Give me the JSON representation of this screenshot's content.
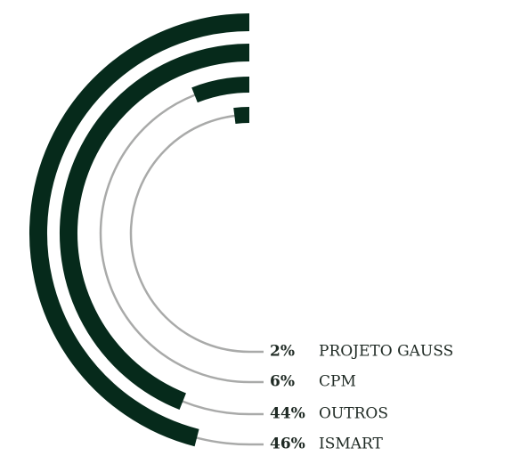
{
  "chart_data": {
    "type": "radial_bar",
    "categories": [
      "ISMART",
      "OUTROS",
      "CPM",
      "PROJETO GAUSS"
    ],
    "values": [
      46,
      44,
      6,
      2
    ],
    "value_labels": [
      "46%",
      "44%",
      "6%",
      "2%"
    ],
    "color": "#062a1b",
    "track_color": "#a9aaa9"
  }
}
